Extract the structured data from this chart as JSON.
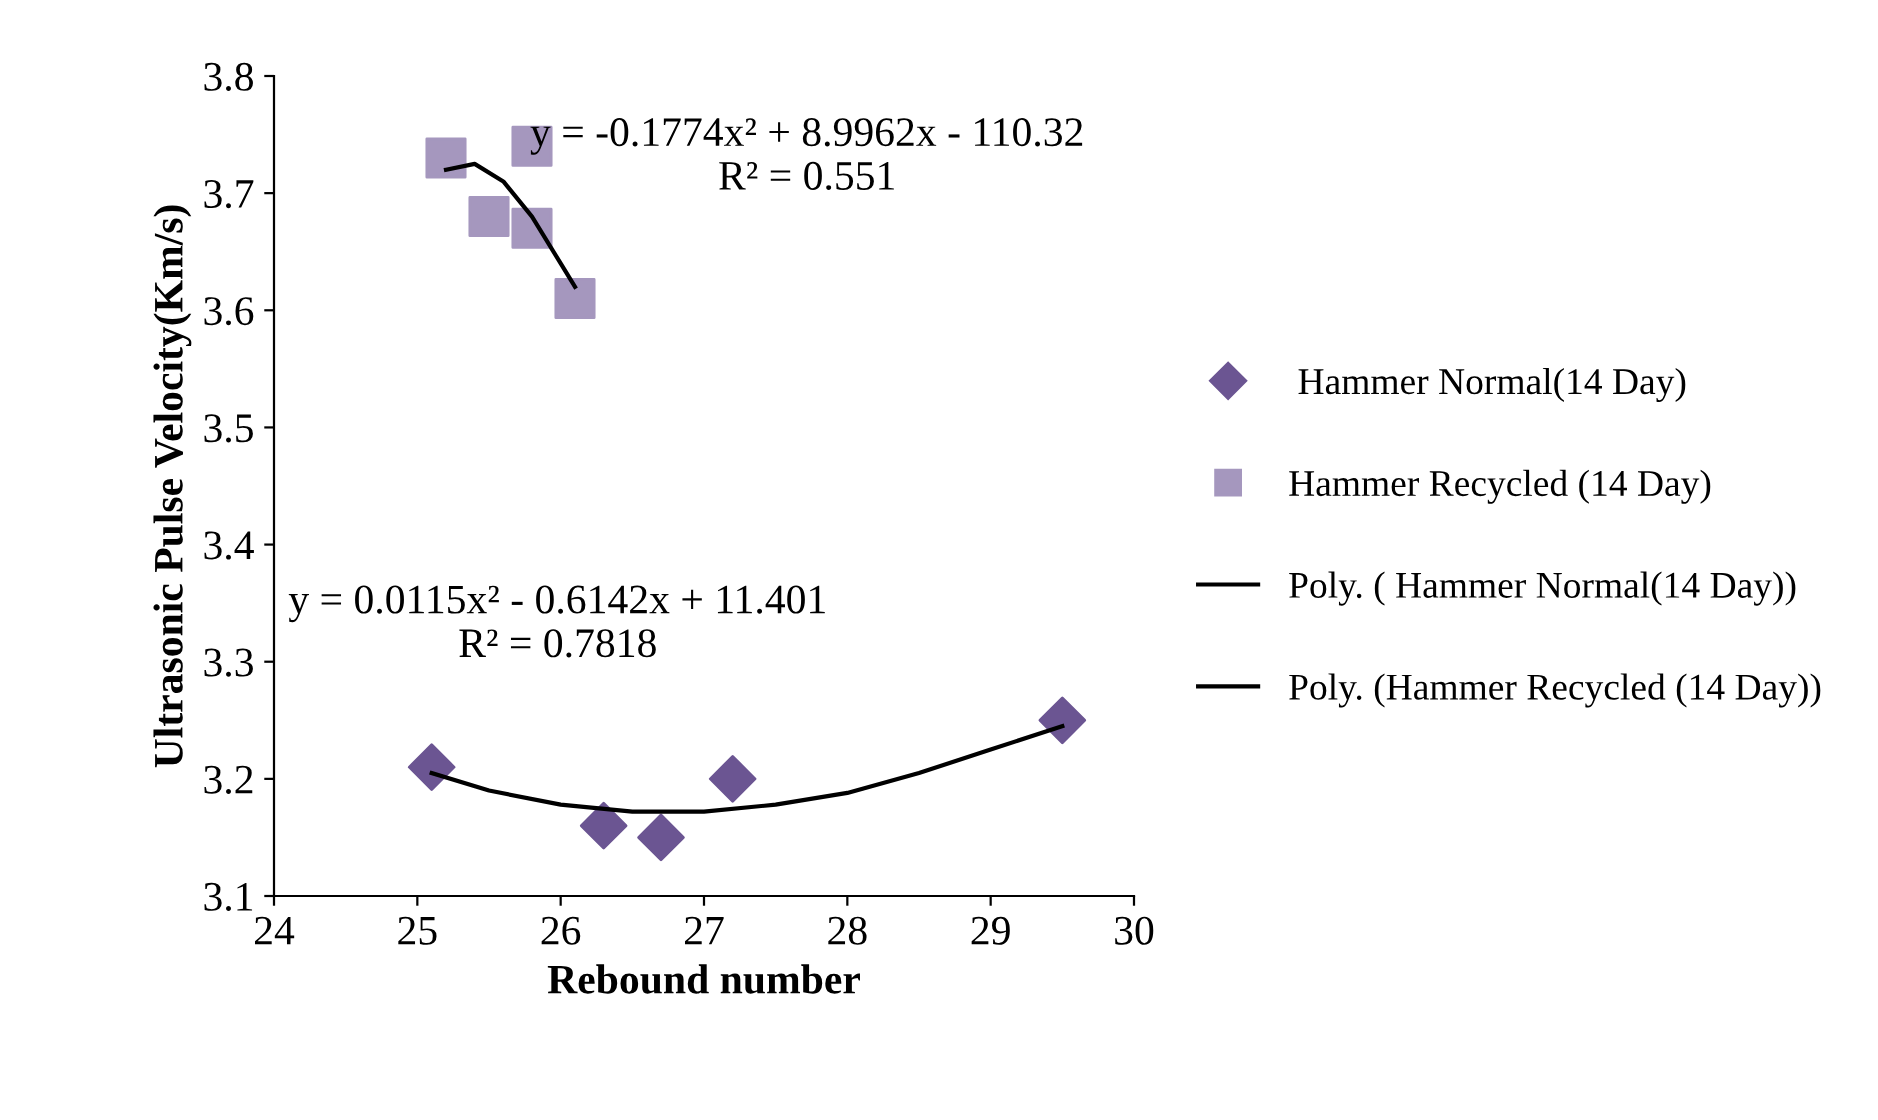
{
  "chart_data": {
    "type": "scatter",
    "xlabel": "Rebound number",
    "ylabel": "Ultrasonic Pulse Velocity(Km/s)",
    "xlim": [
      24,
      30
    ],
    "xticks": [
      24,
      25,
      26,
      27,
      28,
      29,
      30
    ],
    "ylim": [
      3.1,
      3.8
    ],
    "yticks": [
      3.1,
      3.2,
      3.3,
      3.4,
      3.5,
      3.6,
      3.7,
      3.8
    ],
    "grid": false,
    "legend": "right",
    "series": [
      {
        "name": " Hammer Normal(14 Day)",
        "marker": "diamond",
        "color": "#6b5592",
        "x": [
          25.1,
          26.3,
          26.7,
          27.2,
          29.5
        ],
        "values": [
          3.21,
          3.16,
          3.15,
          3.2,
          3.25
        ]
      },
      {
        "name": "Hammer Recycled (14 Day)",
        "marker": "square",
        "color": "#a597be",
        "x": [
          25.2,
          25.5,
          25.8,
          25.8,
          26.1
        ],
        "values": [
          3.73,
          3.68,
          3.74,
          3.67,
          3.61
        ]
      },
      {
        "name": "Poly. ( Hammer Normal(14 Day))",
        "type": "line",
        "marker": "none",
        "color": "#000000",
        "x": [
          25.1,
          25.5,
          26,
          26.5,
          27,
          27.5,
          28,
          28.5,
          29,
          29.5
        ],
        "values": [
          3.205,
          3.19,
          3.178,
          3.172,
          3.172,
          3.178,
          3.188,
          3.205,
          3.225,
          3.245
        ]
      },
      {
        "name": "Poly. (Hammer Recycled (14 Day))",
        "type": "line",
        "marker": "none",
        "color": "#000000",
        "x": [
          25.2,
          25.4,
          25.6,
          25.8,
          26,
          26.1
        ],
        "values": [
          3.72,
          3.725,
          3.71,
          3.68,
          3.64,
          3.62
        ]
      }
    ],
    "annotations": [
      "y = -0.1774x² + 8.9962x - 110.32\nR² = 0.551",
      "y = 0.0115x² - 0.6142x + 11.401\nR² = 0.7818"
    ]
  }
}
